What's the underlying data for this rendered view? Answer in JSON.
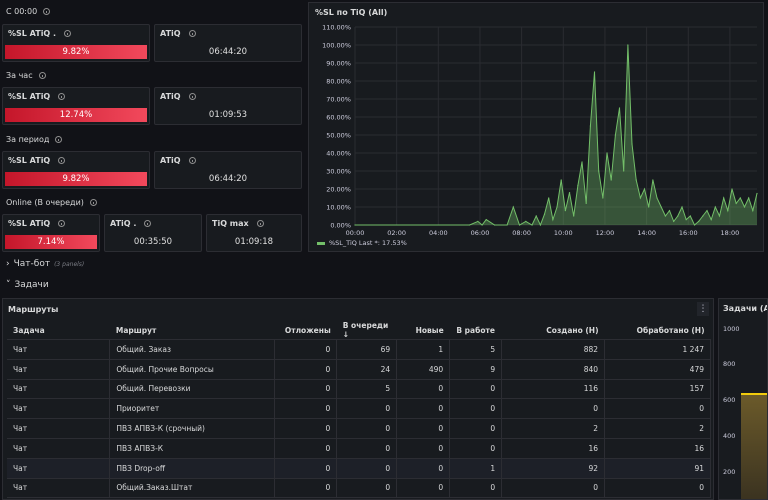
{
  "since_midnight": {
    "title": "С 00:00",
    "sl": {
      "label": "%SL ATiQ .",
      "value": "9.82%"
    },
    "atiq": {
      "label": "ATiQ",
      "value": "06:44:20"
    }
  },
  "per_hour": {
    "title": "За час",
    "sl": {
      "label": "%SL ATiQ",
      "value": "12.74%"
    },
    "atiq": {
      "label": "ATiQ",
      "value": "01:09:53"
    }
  },
  "per_period": {
    "title": "За период",
    "sl": {
      "label": "%SL ATiQ",
      "value": "9.82%"
    },
    "atiq": {
      "label": "ATiQ",
      "value": "06:44:20"
    }
  },
  "online": {
    "title": "Online (В очереди)",
    "sl": {
      "label": "%SL ATiQ",
      "value": "7.14%"
    },
    "atiq": {
      "label": "ATiQ .",
      "value": "00:35:50"
    },
    "tiq_max": {
      "label": "TiQ max",
      "value": "01:09:18"
    }
  },
  "chat_bot_row": {
    "label": "Чат-бот",
    "note": "(3 panels)"
  },
  "tasks_row": {
    "label": "Задачи"
  },
  "chart_data": {
    "type": "area",
    "title": "%SL по TiQ (All)",
    "ylim": [
      0,
      110
    ],
    "y_ticks": [
      "0.00%",
      "10.00%",
      "20.00%",
      "30.00%",
      "40.00%",
      "50.00%",
      "60.00%",
      "70.00%",
      "80.00%",
      "90.00%",
      "100.00%",
      "110.00%"
    ],
    "x_ticks": [
      "00:00",
      "02:00",
      "04:00",
      "06:00",
      "08:00",
      "10:00",
      "12:00",
      "14:00",
      "16:00",
      "18:00"
    ],
    "x_range": [
      0,
      19.3
    ],
    "series": [
      {
        "name": "%SL_TiQ",
        "legend": "%SL_TiQ   Last *: 17.53%",
        "color": "#73bf69",
        "x": [
          0,
          5.5,
          5.9,
          6.1,
          6.3,
          6.7,
          7.3,
          7.6,
          7.9,
          8.2,
          8.5,
          8.7,
          8.9,
          9.1,
          9.3,
          9.5,
          9.7,
          9.9,
          10.1,
          10.3,
          10.5,
          10.7,
          10.9,
          11.1,
          11.3,
          11.5,
          11.7,
          11.9,
          12.1,
          12.3,
          12.5,
          12.7,
          12.9,
          13.1,
          13.3,
          13.5,
          13.7,
          13.9,
          14.1,
          14.3,
          14.5,
          14.7,
          14.9,
          15.1,
          15.3,
          15.5,
          15.7,
          15.9,
          16.1,
          16.3,
          16.5,
          16.7,
          16.9,
          17.1,
          17.3,
          17.5,
          17.7,
          17.9,
          18.1,
          18.3,
          18.5,
          18.7,
          18.9,
          19.1,
          19.3
        ],
        "y": [
          0,
          0,
          2,
          0,
          3,
          0,
          0,
          10,
          0,
          2,
          0,
          5,
          0,
          6,
          15,
          3,
          10,
          25,
          8,
          18,
          5,
          22,
          35,
          12,
          55,
          85,
          30,
          15,
          40,
          25,
          50,
          65,
          30,
          100,
          45,
          25,
          15,
          20,
          10,
          25,
          15,
          10,
          5,
          8,
          2,
          5,
          10,
          3,
          5,
          0,
          2,
          5,
          8,
          3,
          10,
          5,
          15,
          8,
          20,
          12,
          15,
          10,
          15,
          8,
          17.53
        ]
      }
    ]
  },
  "routes": {
    "title": "Маршруты",
    "columns": [
      "Задача",
      "Маршрут",
      "Отложены",
      "В очереди",
      "Новые",
      "В работе",
      "Создано (Н)",
      "Обработано (Н)"
    ],
    "rows": [
      [
        "Чат",
        "Общий. Заказ",
        "0",
        "69",
        "1",
        "5",
        "882",
        "1 247"
      ],
      [
        "Чат",
        "Общий. Прочие Вопросы",
        "0",
        "24",
        "490",
        "9",
        "840",
        "479"
      ],
      [
        "Чат",
        "Общий. Перевозки",
        "0",
        "5",
        "0",
        "0",
        "116",
        "157"
      ],
      [
        "Чат",
        "Приоритет",
        "0",
        "0",
        "0",
        "0",
        "0",
        "0"
      ],
      [
        "Чат",
        "ПВЗ АПВЗ-К (срочный)",
        "0",
        "0",
        "0",
        "0",
        "2",
        "2"
      ],
      [
        "Чат",
        "ПВЗ АПВЗ-К",
        "0",
        "0",
        "0",
        "0",
        "16",
        "16"
      ],
      [
        "Чат",
        "ПВЗ Drop-off",
        "0",
        "0",
        "0",
        "1",
        "92",
        "91"
      ],
      [
        "Чат",
        "Общий.Заказ.Штат",
        "0",
        "0",
        "0",
        "0",
        "0",
        "0"
      ]
    ]
  },
  "tasks_panel": {
    "title": "Задачи (All)",
    "y_ticks": [
      "1000",
      "800",
      "600",
      "400",
      "200"
    ]
  }
}
